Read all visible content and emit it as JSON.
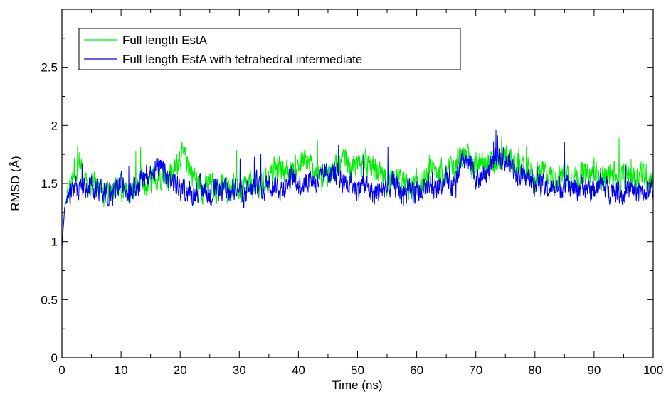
{
  "chart_data": {
    "type": "line",
    "title": "",
    "xlabel": "Time (ns)",
    "ylabel": "RMSD (Å)",
    "xlim": [
      0,
      100
    ],
    "ylim": [
      0,
      3
    ],
    "x_major_ticks": [
      0,
      10,
      20,
      30,
      40,
      50,
      60,
      70,
      80,
      90,
      100
    ],
    "x_minor_ticks": [
      5,
      15,
      25,
      35,
      45,
      55,
      65,
      75,
      85,
      95
    ],
    "x_tick_labels": [
      "0",
      "10",
      "20",
      "30",
      "40",
      "50",
      "60",
      "70",
      "80",
      "90",
      "100"
    ],
    "y_major_ticks": [
      0,
      0.5,
      1,
      1.5,
      2,
      2.5
    ],
    "y_minor_ticks": [
      0.25,
      0.75,
      1.25,
      1.75,
      2.25,
      2.75
    ],
    "y_tick_labels": [
      "0",
      "0.5",
      "1",
      "1.5",
      "2",
      "2.5"
    ],
    "grid": false,
    "legend_position": "top-left",
    "series": [
      {
        "name": "Full length EstA",
        "color": "#00ee00",
        "x": [
          0,
          0.5,
          1,
          2,
          3,
          4,
          5,
          6,
          7,
          8,
          9,
          10,
          11,
          12,
          13,
          14,
          15,
          16,
          17,
          18,
          19,
          20,
          21,
          22,
          23,
          24,
          25,
          26,
          27,
          28,
          29,
          30,
          31,
          32,
          33,
          34,
          35,
          36,
          37,
          38,
          39,
          40,
          41,
          42,
          43,
          44,
          45,
          46,
          47,
          48,
          49,
          50,
          51,
          52,
          53,
          54,
          55,
          56,
          57,
          58,
          59,
          60,
          61,
          62,
          63,
          64,
          65,
          66,
          67,
          68,
          69,
          70,
          71,
          72,
          73,
          74,
          75,
          76,
          77,
          78,
          79,
          80,
          81,
          82,
          83,
          84,
          85,
          86,
          87,
          88,
          89,
          90,
          91,
          92,
          93,
          94,
          95,
          96,
          97,
          98,
          99,
          100
        ],
        "y": [
          1.0,
          1.3,
          1.45,
          1.55,
          1.7,
          1.5,
          1.45,
          1.5,
          1.4,
          1.45,
          1.5,
          1.45,
          1.4,
          1.45,
          1.5,
          1.45,
          1.5,
          1.55,
          1.6,
          1.55,
          1.6,
          1.75,
          1.7,
          1.6,
          1.5,
          1.45,
          1.5,
          1.45,
          1.5,
          1.45,
          1.5,
          1.45,
          1.45,
          1.5,
          1.45,
          1.5,
          1.55,
          1.6,
          1.65,
          1.6,
          1.6,
          1.65,
          1.7,
          1.65,
          1.6,
          1.55,
          1.6,
          1.6,
          1.65,
          1.7,
          1.6,
          1.65,
          1.7,
          1.65,
          1.6,
          1.55,
          1.5,
          1.5,
          1.55,
          1.5,
          1.45,
          1.5,
          1.5,
          1.55,
          1.6,
          1.6,
          1.6,
          1.65,
          1.7,
          1.75,
          1.7,
          1.65,
          1.65,
          1.7,
          1.65,
          1.7,
          1.75,
          1.7,
          1.65,
          1.6,
          1.6,
          1.55,
          1.6,
          1.6,
          1.55,
          1.55,
          1.6,
          1.55,
          1.55,
          1.6,
          1.55,
          1.6,
          1.55,
          1.55,
          1.6,
          1.55,
          1.55,
          1.6,
          1.55,
          1.6,
          1.55,
          1.55
        ]
      },
      {
        "name": "Full length EstA with tetrahedral intermediate",
        "color": "#0000ee",
        "x": [
          0,
          0.5,
          1,
          2,
          3,
          4,
          5,
          6,
          7,
          8,
          9,
          10,
          11,
          12,
          13,
          14,
          15,
          16,
          17,
          18,
          19,
          20,
          21,
          22,
          23,
          24,
          25,
          26,
          27,
          28,
          29,
          30,
          31,
          32,
          33,
          34,
          35,
          36,
          37,
          38,
          39,
          40,
          41,
          42,
          43,
          44,
          45,
          46,
          47,
          48,
          49,
          50,
          51,
          52,
          53,
          54,
          55,
          56,
          57,
          58,
          59,
          60,
          61,
          62,
          63,
          64,
          65,
          66,
          67,
          68,
          69,
          70,
          71,
          72,
          73,
          74,
          75,
          76,
          77,
          78,
          79,
          80,
          81,
          82,
          83,
          84,
          85,
          86,
          87,
          88,
          89,
          90,
          91,
          92,
          93,
          94,
          95,
          96,
          97,
          98,
          99,
          100
        ],
        "y": [
          0.95,
          1.3,
          1.4,
          1.45,
          1.45,
          1.45,
          1.5,
          1.45,
          1.45,
          1.4,
          1.45,
          1.5,
          1.45,
          1.45,
          1.5,
          1.55,
          1.6,
          1.65,
          1.6,
          1.55,
          1.5,
          1.45,
          1.45,
          1.4,
          1.45,
          1.45,
          1.4,
          1.45,
          1.45,
          1.4,
          1.45,
          1.45,
          1.4,
          1.45,
          1.5,
          1.45,
          1.5,
          1.5,
          1.45,
          1.5,
          1.55,
          1.5,
          1.5,
          1.55,
          1.5,
          1.55,
          1.6,
          1.6,
          1.55,
          1.5,
          1.5,
          1.45,
          1.5,
          1.45,
          1.4,
          1.45,
          1.45,
          1.5,
          1.45,
          1.4,
          1.45,
          1.4,
          1.45,
          1.5,
          1.45,
          1.5,
          1.55,
          1.5,
          1.6,
          1.7,
          1.65,
          1.55,
          1.55,
          1.6,
          1.7,
          1.75,
          1.7,
          1.65,
          1.6,
          1.55,
          1.55,
          1.5,
          1.5,
          1.45,
          1.45,
          1.45,
          1.5,
          1.45,
          1.45,
          1.5,
          1.45,
          1.45,
          1.5,
          1.45,
          1.45,
          1.45,
          1.4,
          1.45,
          1.45,
          1.4,
          1.45,
          1.45
        ]
      }
    ]
  }
}
